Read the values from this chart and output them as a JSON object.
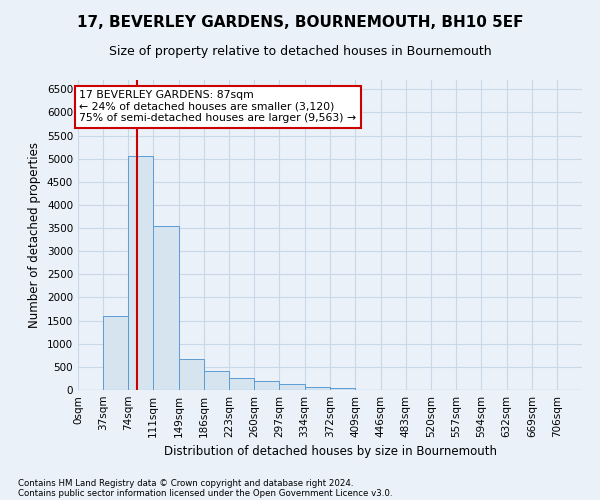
{
  "title": "17, BEVERLEY GARDENS, BOURNEMOUTH, BH10 5EF",
  "subtitle": "Size of property relative to detached houses in Bournemouth",
  "xlabel": "Distribution of detached houses by size in Bournemouth",
  "ylabel": "Number of detached properties",
  "footnote1": "Contains HM Land Registry data © Crown copyright and database right 2024.",
  "footnote2": "Contains public sector information licensed under the Open Government Licence v3.0.",
  "bar_edges": [
    0,
    37,
    74,
    111,
    149,
    186,
    223,
    260,
    297,
    334,
    372,
    409,
    446,
    483,
    520,
    557,
    594,
    632,
    669,
    706,
    743
  ],
  "bar_heights": [
    0,
    1600,
    5050,
    3550,
    680,
    420,
    250,
    190,
    130,
    60,
    50,
    0,
    0,
    0,
    0,
    0,
    0,
    0,
    0,
    0
  ],
  "bar_color": "#d6e4f0",
  "bar_edge_color": "#5b9bd5",
  "property_sqm": 87,
  "property_line_color": "#cc0000",
  "ylim": [
    0,
    6700
  ],
  "yticks": [
    0,
    500,
    1000,
    1500,
    2000,
    2500,
    3000,
    3500,
    4000,
    4500,
    5000,
    5500,
    6000,
    6500
  ],
  "annotation_line1": "17 BEVERLEY GARDENS: 87sqm",
  "annotation_line2": "← 24% of detached houses are smaller (3,120)",
  "annotation_line3": "75% of semi-detached houses are larger (9,563) →",
  "annotation_box_color": "#ffffff",
  "annotation_box_edge": "#cc0000",
  "bg_color": "#eaf1f8",
  "plot_bg_color": "#eaf1f8",
  "grid_color": "#c8d8e8",
  "tick_label_fontsize": 7.5,
  "title_fontsize": 11,
  "subtitle_fontsize": 9
}
